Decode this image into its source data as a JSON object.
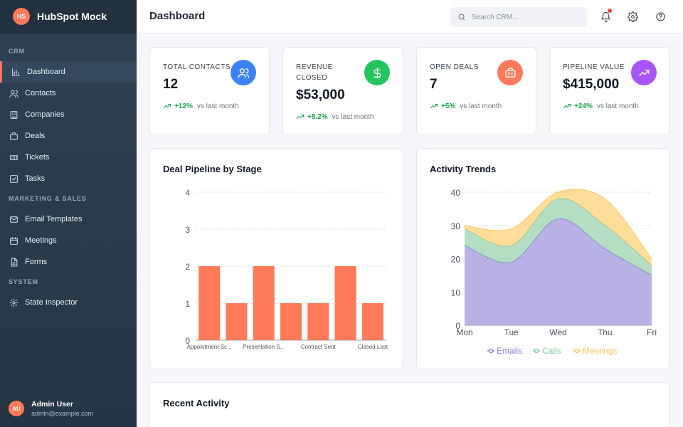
{
  "brand": {
    "logo_initials": "HS",
    "name": "HubSpot Mock"
  },
  "sidebar": {
    "sections": [
      {
        "label": "CRM"
      },
      {
        "label": "MARKETING & SALES"
      },
      {
        "label": "SYSTEM"
      }
    ],
    "items": [
      {
        "label": "Dashboard",
        "icon": "bar-chart-icon",
        "active": true
      },
      {
        "label": "Contacts",
        "icon": "users-icon"
      },
      {
        "label": "Companies",
        "icon": "building-icon"
      },
      {
        "label": "Deals",
        "icon": "briefcase-icon"
      },
      {
        "label": "Tickets",
        "icon": "ticket-icon"
      },
      {
        "label": "Tasks",
        "icon": "check-square-icon"
      },
      {
        "label": "Email Templates",
        "icon": "mail-icon"
      },
      {
        "label": "Meetings",
        "icon": "calendar-icon"
      },
      {
        "label": "Forms",
        "icon": "file-text-icon"
      },
      {
        "label": "State Inspector",
        "icon": "gear-icon"
      }
    ]
  },
  "user": {
    "initials": "AU",
    "name": "Admin User",
    "email": "admin@example.com"
  },
  "header": {
    "title": "Dashboard",
    "search_placeholder": "Search CRM...",
    "has_notification": true
  },
  "stats": [
    {
      "label": "TOTAL CONTACTS",
      "value": "12",
      "trend": "+12%",
      "trend_text": "vs last month",
      "icon": "users-icon",
      "color": "#3b82f6"
    },
    {
      "label": "REVENUE CLOSED",
      "value": "$53,000",
      "trend": "+8.2%",
      "trend_text": "vs last month",
      "icon": "dollar-icon",
      "color": "#22c55e"
    },
    {
      "label": "OPEN DEALS",
      "value": "7",
      "trend": "+5%",
      "trend_text": "vs last month",
      "icon": "briefcase-icon",
      "color": "#ff7a59"
    },
    {
      "label": "PIPELINE VALUE",
      "value": "$415,000",
      "trend": "+24%",
      "trend_text": "vs last month",
      "icon": "trending-up-icon",
      "color": "#a855f7"
    }
  ],
  "pipeline_card": {
    "title": "Deal Pipeline by Stage"
  },
  "activity_card": {
    "title": "Activity Trends"
  },
  "recent_card": {
    "title": "Recent Activity"
  },
  "chart_data": [
    {
      "type": "bar",
      "categories": [
        "Appointment Sc...",
        "",
        "Presentation S...",
        "",
        "Contract Sent",
        "",
        "Closed Lost"
      ],
      "values": [
        2,
        1,
        2,
        1,
        1,
        2,
        1
      ],
      "yticks": [
        0,
        1,
        2,
        3,
        4
      ],
      "ylim": [
        0,
        4
      ],
      "color": "#ff7a59",
      "grid": true
    },
    {
      "type": "area",
      "stacked": true,
      "x": [
        "Mon",
        "Tue",
        "Wed",
        "Thu",
        "Fri"
      ],
      "series": [
        {
          "name": "Emails",
          "values": [
            24,
            19,
            32,
            23,
            15
          ],
          "color": "#8b7fd6"
        },
        {
          "name": "Calls",
          "values": [
            5,
            5,
            6,
            7,
            3
          ],
          "color": "#82ca9d"
        },
        {
          "name": "Meetings",
          "values": [
            1,
            5,
            2,
            8,
            2
          ],
          "color": "#ffc658"
        }
      ],
      "yticks": [
        0,
        10,
        20,
        30,
        40
      ],
      "ylim": [
        0,
        40
      ],
      "legend": "bottom",
      "grid": true
    }
  ]
}
